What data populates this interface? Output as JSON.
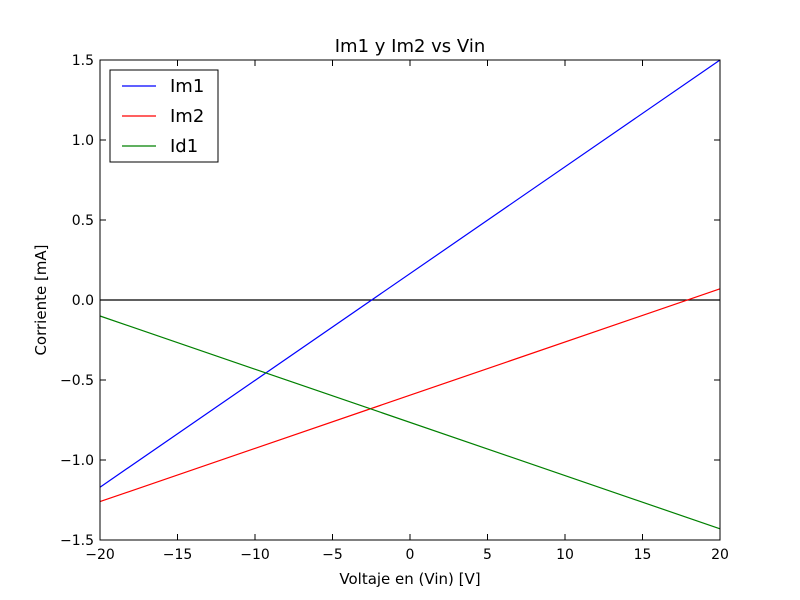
{
  "chart_data": {
    "type": "line",
    "title": "Im1 y Im2 vs Vin",
    "xlabel": "Voltaje en (Vin) [V]",
    "ylabel": "Corriente [mA]",
    "xlim": [
      -20,
      20
    ],
    "ylim": [
      -1.5,
      1.5
    ],
    "xticks": [
      -20,
      -15,
      -10,
      -5,
      0,
      5,
      10,
      15,
      20
    ],
    "xtick_labels": [
      "−20",
      "−15",
      "−10",
      "−5",
      "0",
      "5",
      "10",
      "15",
      "20"
    ],
    "yticks": [
      1.5,
      1.0,
      0.5,
      0.0,
      -0.5,
      -1.0,
      -1.5
    ],
    "ytick_labels": [
      "1.5",
      "1.0",
      "0.5",
      "0.0",
      "−0.5",
      "−1.0",
      "−1.5"
    ],
    "grid": false,
    "legend_position": "top-left",
    "reference_line": {
      "y": 0,
      "color": "#000000"
    },
    "series": [
      {
        "name": "Im1",
        "color": "#0000ff",
        "x": [
          -20,
          20
        ],
        "y": [
          -1.17,
          1.5
        ]
      },
      {
        "name": "Im2",
        "color": "#ff0000",
        "x": [
          -20,
          20
        ],
        "y": [
          -1.26,
          0.07
        ]
      },
      {
        "name": "Id1",
        "color": "#008000",
        "x": [
          -20,
          20
        ],
        "y": [
          -0.1,
          -1.43
        ]
      }
    ]
  }
}
